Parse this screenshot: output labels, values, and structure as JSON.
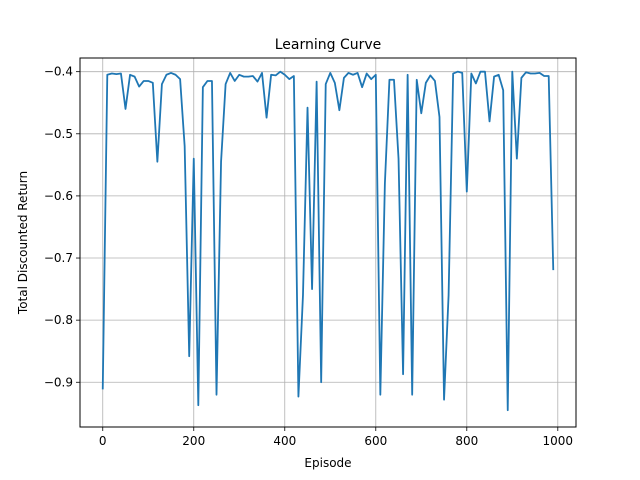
{
  "chart_data": {
    "type": "line",
    "title": "Learning Curve",
    "xlabel": "Episode",
    "ylabel": "Total Discounted Return",
    "xlim": [
      -50,
      1040
    ],
    "ylim": [
      -0.972,
      -0.378
    ],
    "xticks": [
      0,
      200,
      400,
      600,
      800,
      1000
    ],
    "yticks": [
      -0.9,
      -0.8,
      -0.7,
      -0.6,
      -0.5,
      -0.4
    ],
    "xtick_labels": [
      "0",
      "200",
      "400",
      "600",
      "800",
      "1000"
    ],
    "ytick_labels": [
      "−0.9",
      "−0.8",
      "−0.7",
      "−0.6",
      "−0.5",
      "−0.4"
    ],
    "grid": true,
    "colors": {
      "series": "#1f77b4",
      "grid": "#b0b0b0",
      "axes": "#000000"
    },
    "series": [
      {
        "x": [
          0,
          10,
          20,
          30,
          40,
          50,
          60,
          70,
          80,
          90,
          100,
          110,
          120,
          130,
          140,
          150,
          160,
          170,
          180,
          190,
          200,
          210,
          220,
          230,
          240,
          250,
          260,
          270,
          280,
          290,
          300,
          310,
          320,
          330,
          340,
          350,
          360,
          370,
          380,
          390,
          400,
          410,
          420,
          430,
          440,
          450,
          460,
          470,
          480,
          490,
          500,
          510,
          520,
          530,
          540,
          550,
          560,
          570,
          580,
          590,
          600,
          610,
          620,
          630,
          640,
          650,
          660,
          670,
          680,
          690,
          700,
          710,
          720,
          730,
          740,
          750,
          760,
          770,
          780,
          790,
          800,
          810,
          820,
          830,
          840,
          850,
          860,
          870,
          880,
          890,
          900,
          910,
          920,
          930,
          940,
          950,
          960,
          970,
          980,
          990
        ],
        "y": [
          -0.91,
          -0.405,
          -0.403,
          -0.404,
          -0.403,
          -0.46,
          -0.405,
          -0.408,
          -0.424,
          -0.415,
          -0.415,
          -0.418,
          -0.545,
          -0.42,
          -0.405,
          -0.402,
          -0.405,
          -0.412,
          -0.52,
          -0.858,
          -0.54,
          -0.937,
          -0.425,
          -0.415,
          -0.415,
          -0.92,
          -0.545,
          -0.42,
          -0.402,
          -0.415,
          -0.405,
          -0.408,
          -0.408,
          -0.407,
          -0.416,
          -0.402,
          -0.474,
          -0.405,
          -0.406,
          -0.4,
          -0.405,
          -0.412,
          -0.407,
          -0.923,
          -0.76,
          -0.458,
          -0.75,
          -0.416,
          -0.9,
          -0.42,
          -0.402,
          -0.418,
          -0.462,
          -0.41,
          -0.402,
          -0.405,
          -0.402,
          -0.425,
          -0.403,
          -0.412,
          -0.405,
          -0.92,
          -0.58,
          -0.413,
          -0.413,
          -0.54,
          -0.887,
          -0.405,
          -0.92,
          -0.413,
          -0.467,
          -0.418,
          -0.406,
          -0.415,
          -0.473,
          -0.928,
          -0.76,
          -0.403,
          -0.4,
          -0.402,
          -0.593,
          -0.403,
          -0.419,
          -0.4,
          -0.4,
          -0.48,
          -0.408,
          -0.405,
          -0.43,
          -0.945,
          -0.4,
          -0.54,
          -0.41,
          -0.401,
          -0.403,
          -0.403,
          -0.402,
          -0.407,
          -0.407,
          -0.718
        ]
      }
    ]
  }
}
